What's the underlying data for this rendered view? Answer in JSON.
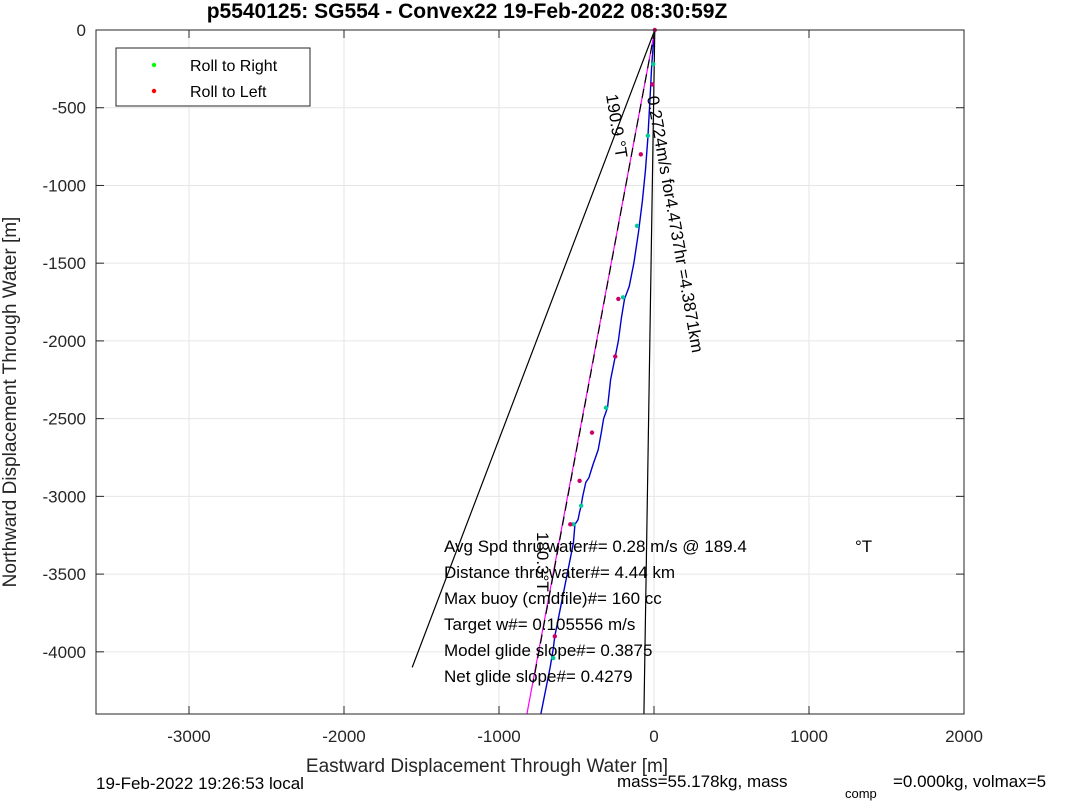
{
  "chart_data": {
    "type": "line",
    "title": "p5540125: SG554 - Convex22 19-Feb-2022 08:30:59Z",
    "xlabel": "Eastward Displacement Through Water [m]",
    "ylabel": "Northward Displacement Through Water [m]",
    "xlim": [
      -3600,
      2000
    ],
    "ylim": [
      -4400,
      0
    ],
    "xticks": [
      -3000,
      -2000,
      -1000,
      0,
      1000,
      2000
    ],
    "yticks": [
      0,
      -500,
      -1000,
      -1500,
      -2000,
      -2500,
      -3000,
      -3500,
      -4000
    ],
    "xtick_labels": [
      "-3000",
      "-2000",
      "-1000",
      "0",
      "1000",
      "2000"
    ],
    "ytick_labels": [
      "0",
      "-500",
      "-1000",
      "-1500",
      "-2000",
      "-2500",
      "-3000",
      "-3500",
      "-4000"
    ],
    "grid": true,
    "legend": {
      "placement": "top-left",
      "entries": [
        {
          "label": "Roll to Right",
          "color": "#00ff00"
        },
        {
          "label": "Roll to Left",
          "color": "#ff0000"
        }
      ]
    },
    "series": [
      {
        "kind": "track",
        "color": "#0000cc",
        "x": [
          5,
          -5,
          -15,
          -22,
          -30,
          -40,
          -55,
          -75,
          -100,
          -130,
          -160,
          -190,
          -210,
          -230,
          -250,
          -280,
          -300,
          -325,
          -340,
          -360,
          -395,
          -420,
          -440,
          -460,
          -470,
          -480,
          -490,
          -510,
          -520,
          -540,
          -560,
          -580,
          -600,
          -620,
          -640,
          -650,
          -660,
          -670,
          -690,
          -710,
          -730
        ],
        "y": [
          0,
          -100,
          -230,
          -370,
          -520,
          -700,
          -900,
          -1100,
          -1300,
          -1500,
          -1650,
          -1730,
          -1850,
          -2000,
          -2100,
          -2250,
          -2430,
          -2500,
          -2590,
          -2700,
          -2800,
          -2880,
          -2910,
          -3000,
          -3060,
          -3100,
          -3150,
          -3180,
          -3300,
          -3400,
          -3500,
          -3600,
          -3700,
          -3800,
          -3900,
          -3980,
          -4040,
          -4100,
          -4200,
          -4300,
          -4400
        ]
      },
      {
        "kind": "straight",
        "color": "#ff00ff",
        "x": [
          5,
          -820
        ],
        "y": [
          0,
          -4400
        ]
      },
      {
        "kind": "straight",
        "color": "#000000",
        "style": "dashed",
        "x": [
          5,
          -780
        ],
        "y": [
          0,
          -4200
        ]
      },
      {
        "kind": "straight",
        "color": "#000000",
        "x": [
          5,
          -1560
        ],
        "y": [
          0,
          -4100
        ]
      },
      {
        "kind": "straight",
        "color": "#000000",
        "x": [
          5,
          -65
        ],
        "y": [
          0,
          -4400
        ]
      }
    ],
    "roll_right_points": {
      "color": "#00cc99",
      "x": [
        -5,
        -40,
        -110,
        -200,
        -310,
        -470,
        -520,
        -650
      ],
      "y": [
        -220,
        -680,
        -1260,
        -1720,
        -2430,
        -3060,
        -3180,
        -4040
      ]
    },
    "roll_left_points": {
      "color": "#cc0066",
      "x": [
        5,
        -10,
        -85,
        -230,
        -250,
        -400,
        -480,
        -540,
        -640
      ],
      "y": [
        0,
        -350,
        -800,
        -1730,
        -2100,
        -2590,
        -2900,
        -3180,
        -3900
      ]
    },
    "annotations": {
      "angle_label": "190.9 °T",
      "speed_label": "0.2724m/s for4.4737hr =4.3871km",
      "lower_label": "180.3°T",
      "lines": [
        "Avg Spd thru water#=  0.28 m/s @ 189.4",
        "Distance thru water#=  4.44 km",
        "Max buoy (cmdfile)#= 160 cc",
        "Target w#= 0.105556 m/s",
        "Model glide slope#= 0.3875",
        "Net glide slope#= 0.4279"
      ],
      "avg_spd_unit": "°T"
    }
  },
  "footer": {
    "local_time": "19-Feb-2022 19:26:53 local",
    "mass_text": "mass=55.178kg, mass",
    "mass_sub": "comp",
    "mass_tail": "=0.000kg, volmax=5"
  }
}
